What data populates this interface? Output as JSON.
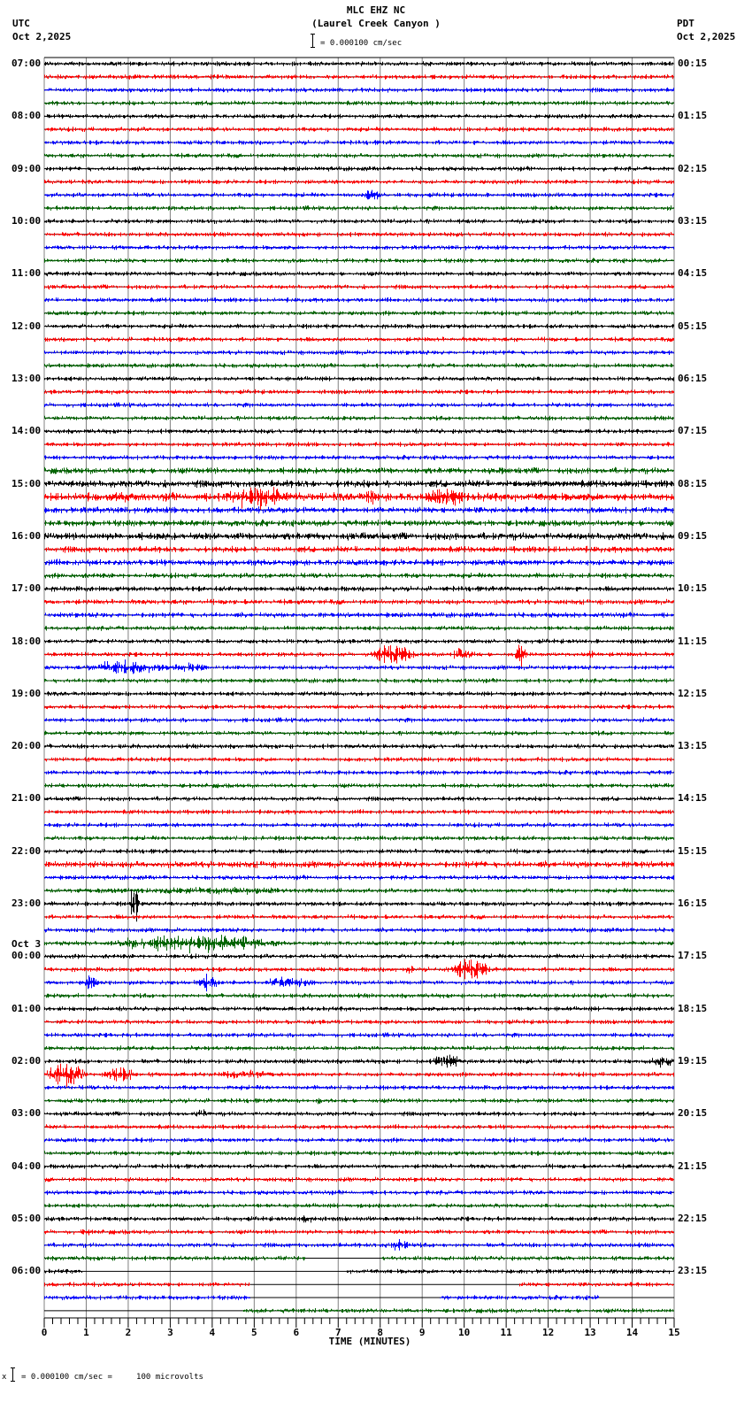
{
  "header": {
    "station": "MLC EHZ NC",
    "location": "(Laurel Creek Canyon )",
    "scale_text": "= 0.000100 cm/sec",
    "left_tz": "UTC",
    "left_date": "Oct 2,2025",
    "right_tz": "PDT",
    "right_date": "Oct 2,2025"
  },
  "footer": {
    "scale_text": "= 0.000100 cm/sec =     100 microvolts",
    "prefix": "x"
  },
  "colors": {
    "trace_cycle": [
      "#000000",
      "#ff0000",
      "#0000ff",
      "#006400"
    ],
    "grid": "#808080",
    "frame": "#000000"
  },
  "chart_data": {
    "type": "line",
    "title": "MLC EHZ NC (Laurel Creek Canyon )",
    "subtitle": "= 0.000100 cm/sec",
    "xlabel": "TIME (MINUTES)",
    "ylabel": "",
    "xlim": [
      0,
      15
    ],
    "x_ticks": [
      "0",
      "1",
      "2",
      "3",
      "4",
      "5",
      "6",
      "7",
      "8",
      "9",
      "10",
      "11",
      "12",
      "13",
      "14",
      "15"
    ],
    "minor_ticks_per_minute": 5,
    "grid": true,
    "traces_per_hour": 4,
    "trace_minutes": 15,
    "left_hour_labels": [
      "07:00",
      "08:00",
      "09:00",
      "10:00",
      "11:00",
      "12:00",
      "13:00",
      "14:00",
      "15:00",
      "16:00",
      "17:00",
      "18:00",
      "19:00",
      "20:00",
      "21:00",
      "22:00",
      "23:00",
      "00:00",
      "01:00",
      "02:00",
      "03:00",
      "04:00",
      "05:00",
      "06:00"
    ],
    "right_hour_labels": [
      "00:15",
      "01:15",
      "02:15",
      "03:15",
      "04:15",
      "05:15",
      "06:15",
      "07:15",
      "08:15",
      "09:15",
      "10:15",
      "11:15",
      "12:15",
      "13:15",
      "14:15",
      "15:15",
      "16:15",
      "17:15",
      "18:15",
      "19:15",
      "20:15",
      "21:15",
      "22:15",
      "23:15"
    ],
    "date_change": {
      "before_hour_index": 17,
      "label": "Oct 3"
    },
    "row_noise": {
      "default": 2.2,
      "elevated": {
        "31": 3.0,
        "32": 3.5,
        "33": 4.0,
        "34": 3.0,
        "35": 3.0,
        "36": 3.5,
        "37": 3.0,
        "38": 3.0,
        "39": 2.5,
        "40": 2.5,
        "41": 2.5,
        "42": 2.5,
        "61": 3.2
      }
    },
    "events": [
      {
        "row": 10,
        "start_min": 7.6,
        "end_min": 8.0,
        "amp": 7
      },
      {
        "row": 9,
        "start_min": 3.4,
        "end_min": 3.5,
        "amp": 4
      },
      {
        "row": 33,
        "start_min": 1.2,
        "end_min": 2.8,
        "amp": 5
      },
      {
        "row": 33,
        "start_min": 4.2,
        "end_min": 5.9,
        "amp": 12
      },
      {
        "row": 33,
        "start_min": 7.6,
        "end_min": 7.9,
        "amp": 9
      },
      {
        "row": 33,
        "start_min": 8.9,
        "end_min": 10.2,
        "amp": 10
      },
      {
        "row": 31,
        "start_min": 10.6,
        "end_min": 11.3,
        "amp": 4
      },
      {
        "row": 45,
        "start_min": 7.7,
        "end_min": 8.8,
        "amp": 10
      },
      {
        "row": 45,
        "start_min": 9.6,
        "end_min": 10.3,
        "amp": 7
      },
      {
        "row": 45,
        "start_min": 11.2,
        "end_min": 11.5,
        "amp": 12
      },
      {
        "row": 45,
        "start_min": 12.9,
        "end_min": 13.2,
        "amp": 6
      },
      {
        "row": 46,
        "start_min": 1.0,
        "end_min": 3.0,
        "amp": 8
      },
      {
        "row": 46,
        "start_min": 3.0,
        "end_min": 3.9,
        "amp": 5
      },
      {
        "row": 63,
        "start_min": 0.2,
        "end_min": 7.0,
        "amp": 4
      },
      {
        "row": 64,
        "start_min": 2.0,
        "end_min": 2.3,
        "amp": 18
      },
      {
        "row": 67,
        "start_min": 1.5,
        "end_min": 5.6,
        "amp": 9
      },
      {
        "row": 69,
        "start_min": 8.6,
        "end_min": 8.8,
        "amp": 8
      },
      {
        "row": 69,
        "start_min": 9.6,
        "end_min": 10.6,
        "amp": 11
      },
      {
        "row": 70,
        "start_min": 0.9,
        "end_min": 1.3,
        "amp": 8
      },
      {
        "row": 70,
        "start_min": 3.5,
        "end_min": 4.2,
        "amp": 8
      },
      {
        "row": 70,
        "start_min": 5.2,
        "end_min": 6.4,
        "amp": 6
      },
      {
        "row": 72,
        "start_min": 9.7,
        "end_min": 9.8,
        "amp": 4
      },
      {
        "row": 76,
        "start_min": 9.2,
        "end_min": 9.9,
        "amp": 9
      },
      {
        "row": 76,
        "start_min": 14.4,
        "end_min": 15.0,
        "amp": 7
      },
      {
        "row": 77,
        "start_min": 0.0,
        "end_min": 1.0,
        "amp": 12
      },
      {
        "row": 77,
        "start_min": 1.4,
        "end_min": 2.2,
        "amp": 9
      },
      {
        "row": 77,
        "start_min": 4.0,
        "end_min": 5.6,
        "amp": 5
      },
      {
        "row": 79,
        "start_min": 6.5,
        "end_min": 6.6,
        "amp": 8
      },
      {
        "row": 80,
        "start_min": 3.6,
        "end_min": 3.9,
        "amp": 5
      },
      {
        "row": 88,
        "start_min": 6.0,
        "end_min": 6.5,
        "amp": 5
      },
      {
        "row": 89,
        "start_min": 0.8,
        "end_min": 1.2,
        "amp": 4
      },
      {
        "row": 90,
        "start_min": 8.0,
        "end_min": 8.8,
        "amp": 7
      }
    ],
    "gaps": [
      {
        "row": 91,
        "start_min": 6.2,
        "end_min": 8.0
      },
      {
        "row": 92,
        "start_min": 0.9,
        "end_min": 7.2
      },
      {
        "row": 93,
        "start_min": 4.9,
        "end_min": 11.3
      },
      {
        "row": 94,
        "start_min": 4.9,
        "end_min": 9.4
      },
      {
        "row": 94,
        "start_min": 13.2,
        "end_min": 15.0
      },
      {
        "row": 95,
        "start_min": 0.0,
        "end_min": 4.7
      }
    ]
  }
}
